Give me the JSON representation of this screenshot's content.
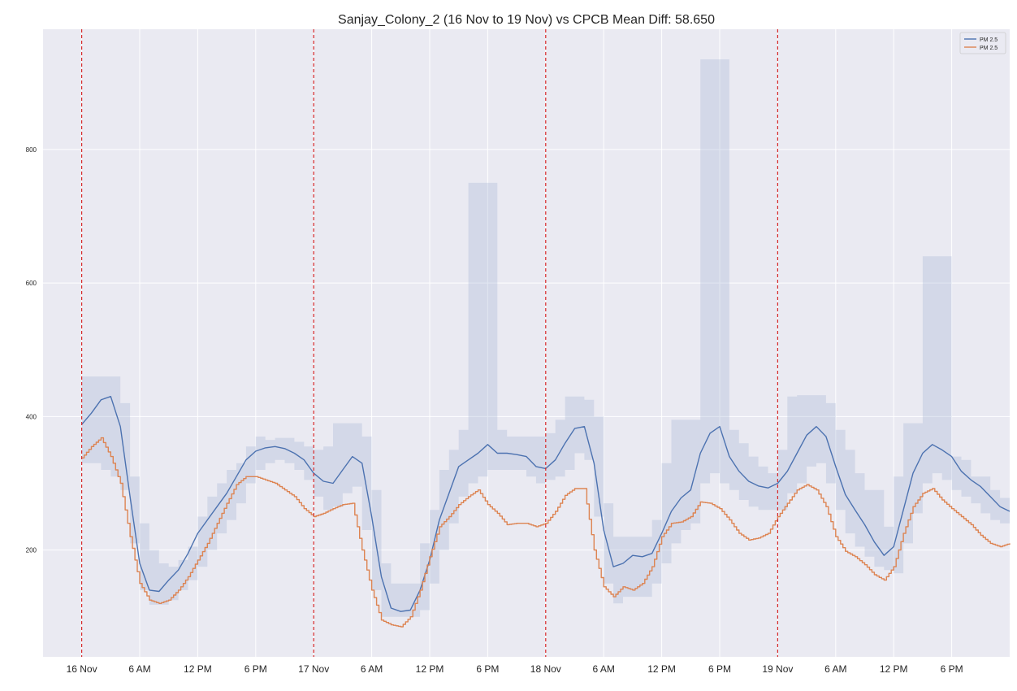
{
  "chart_data": {
    "type": "line",
    "title": "Sanjay_Colony_2 (16 Nov to 19 Nov) vs CPCB Mean Diff: 58.650",
    "xlabel": "",
    "ylabel": "",
    "x_unit": "hours since 16 Nov 00:00",
    "xlim": [
      -4,
      96
    ],
    "ylim": [
      40,
      980
    ],
    "y_ticks": [
      200,
      400,
      600,
      800
    ],
    "x_ticks": [
      {
        "hour": 0,
        "label": "16 Nov"
      },
      {
        "hour": 6,
        "label": "6 AM"
      },
      {
        "hour": 12,
        "label": "12 PM"
      },
      {
        "hour": 18,
        "label": "6 PM"
      },
      {
        "hour": 24,
        "label": "17 Nov"
      },
      {
        "hour": 30,
        "label": "6 AM"
      },
      {
        "hour": 36,
        "label": "12 PM"
      },
      {
        "hour": 42,
        "label": "6 PM"
      },
      {
        "hour": 48,
        "label": "18 Nov"
      },
      {
        "hour": 54,
        "label": "6 AM"
      },
      {
        "hour": 60,
        "label": "12 PM"
      },
      {
        "hour": 66,
        "label": "6 PM"
      },
      {
        "hour": 72,
        "label": "19 Nov"
      },
      {
        "hour": 78,
        "label": "6 AM"
      },
      {
        "hour": 84,
        "label": "12 PM"
      },
      {
        "hour": 90,
        "label": "6 PM"
      }
    ],
    "day_boundaries": [
      0,
      24,
      48,
      72
    ],
    "grid": true,
    "legend": "top-right",
    "background": "#eaeaf2",
    "series": [
      {
        "name": "PM 2.5",
        "color": "#4c72b0",
        "step": false,
        "points": [
          [
            0,
            388
          ],
          [
            1,
            405
          ],
          [
            2,
            425
          ],
          [
            3,
            430
          ],
          [
            4,
            385
          ],
          [
            5,
            280
          ],
          [
            6,
            180
          ],
          [
            7,
            140
          ],
          [
            8,
            138
          ],
          [
            9,
            155
          ],
          [
            10,
            170
          ],
          [
            11,
            195
          ],
          [
            12,
            225
          ],
          [
            13,
            245
          ],
          [
            14,
            265
          ],
          [
            15,
            285
          ],
          [
            16,
            310
          ],
          [
            17,
            335
          ],
          [
            18,
            348
          ],
          [
            19,
            353
          ],
          [
            20,
            355
          ],
          [
            21,
            352
          ],
          [
            22,
            345
          ],
          [
            23,
            335
          ],
          [
            24,
            315
          ],
          [
            25,
            303
          ],
          [
            26,
            300
          ],
          [
            27,
            320
          ],
          [
            28,
            340
          ],
          [
            29,
            330
          ],
          [
            30,
            250
          ],
          [
            31,
            160
          ],
          [
            32,
            113
          ],
          [
            33,
            108
          ],
          [
            34,
            110
          ],
          [
            35,
            140
          ],
          [
            36,
            185
          ],
          [
            37,
            245
          ],
          [
            38,
            285
          ],
          [
            39,
            325
          ],
          [
            40,
            335
          ],
          [
            41,
            345
          ],
          [
            42,
            358
          ],
          [
            43,
            345
          ],
          [
            44,
            345
          ],
          [
            45,
            343
          ],
          [
            46,
            340
          ],
          [
            47,
            325
          ],
          [
            48,
            322
          ],
          [
            49,
            335
          ],
          [
            50,
            360
          ],
          [
            51,
            382
          ],
          [
            52,
            385
          ],
          [
            53,
            330
          ],
          [
            54,
            230
          ],
          [
            55,
            175
          ],
          [
            56,
            180
          ],
          [
            57,
            192
          ],
          [
            58,
            190
          ],
          [
            59,
            195
          ],
          [
            60,
            225
          ],
          [
            61,
            258
          ],
          [
            62,
            278
          ],
          [
            63,
            290
          ],
          [
            64,
            345
          ],
          [
            65,
            375
          ],
          [
            66,
            385
          ],
          [
            67,
            340
          ],
          [
            68,
            318
          ],
          [
            69,
            303
          ],
          [
            70,
            296
          ],
          [
            71,
            293
          ],
          [
            72,
            300
          ],
          [
            73,
            318
          ],
          [
            74,
            345
          ],
          [
            75,
            372
          ],
          [
            76,
            385
          ],
          [
            77,
            370
          ],
          [
            78,
            325
          ],
          [
            79,
            283
          ],
          [
            80,
            260
          ],
          [
            81,
            238
          ],
          [
            82,
            212
          ],
          [
            83,
            192
          ],
          [
            84,
            205
          ],
          [
            85,
            260
          ],
          [
            86,
            315
          ],
          [
            87,
            345
          ],
          [
            88,
            358
          ],
          [
            89,
            350
          ],
          [
            90,
            340
          ],
          [
            91,
            318
          ],
          [
            92,
            305
          ],
          [
            93,
            295
          ],
          [
            94,
            280
          ],
          [
            95,
            265
          ],
          [
            96,
            258
          ]
        ]
      },
      {
        "name": "PM 2.5",
        "color": "#dd8452",
        "step": true,
        "points": [
          [
            0,
            338
          ],
          [
            1,
            355
          ],
          [
            2,
            368
          ],
          [
            3,
            340
          ],
          [
            4,
            300
          ],
          [
            5,
            220
          ],
          [
            6,
            150
          ],
          [
            7,
            125
          ],
          [
            8,
            120
          ],
          [
            9,
            125
          ],
          [
            10,
            140
          ],
          [
            11,
            160
          ],
          [
            12,
            185
          ],
          [
            13,
            210
          ],
          [
            14,
            240
          ],
          [
            15,
            270
          ],
          [
            16,
            298
          ],
          [
            17,
            310
          ],
          [
            18,
            310
          ],
          [
            19,
            305
          ],
          [
            20,
            300
          ],
          [
            21,
            290
          ],
          [
            22,
            280
          ],
          [
            23,
            262
          ],
          [
            24,
            250
          ],
          [
            25,
            255
          ],
          [
            26,
            262
          ],
          [
            27,
            268
          ],
          [
            28,
            270
          ],
          [
            29,
            200
          ],
          [
            30,
            140
          ],
          [
            31,
            95
          ],
          [
            32,
            88
          ],
          [
            33,
            85
          ],
          [
            34,
            100
          ],
          [
            35,
            140
          ],
          [
            36,
            190
          ],
          [
            37,
            235
          ],
          [
            38,
            250
          ],
          [
            39,
            268
          ],
          [
            40,
            280
          ],
          [
            41,
            290
          ],
          [
            42,
            268
          ],
          [
            43,
            255
          ],
          [
            44,
            238
          ],
          [
            45,
            240
          ],
          [
            46,
            240
          ],
          [
            47,
            235
          ],
          [
            48,
            240
          ],
          [
            49,
            258
          ],
          [
            50,
            282
          ],
          [
            51,
            292
          ],
          [
            52,
            292
          ],
          [
            53,
            200
          ],
          [
            54,
            145
          ],
          [
            55,
            130
          ],
          [
            56,
            145
          ],
          [
            57,
            140
          ],
          [
            58,
            150
          ],
          [
            59,
            175
          ],
          [
            60,
            220
          ],
          [
            61,
            240
          ],
          [
            62,
            242
          ],
          [
            63,
            250
          ],
          [
            64,
            272
          ],
          [
            65,
            270
          ],
          [
            66,
            262
          ],
          [
            67,
            245
          ],
          [
            68,
            225
          ],
          [
            69,
            215
          ],
          [
            70,
            218
          ],
          [
            71,
            225
          ],
          [
            72,
            250
          ],
          [
            73,
            270
          ],
          [
            74,
            290
          ],
          [
            75,
            298
          ],
          [
            76,
            290
          ],
          [
            77,
            265
          ],
          [
            78,
            220
          ],
          [
            79,
            198
          ],
          [
            80,
            190
          ],
          [
            81,
            178
          ],
          [
            82,
            163
          ],
          [
            83,
            155
          ],
          [
            84,
            175
          ],
          [
            85,
            225
          ],
          [
            86,
            265
          ],
          [
            87,
            285
          ],
          [
            88,
            292
          ],
          [
            89,
            275
          ],
          [
            90,
            262
          ],
          [
            91,
            250
          ],
          [
            92,
            238
          ],
          [
            93,
            222
          ],
          [
            94,
            210
          ],
          [
            95,
            205
          ],
          [
            96,
            210
          ]
        ]
      }
    ],
    "band": {
      "series": 0,
      "color": "#a8b8d8",
      "step": true,
      "segments": [
        [
          0,
          330,
          460
        ],
        [
          1,
          330,
          460
        ],
        [
          2,
          320,
          460
        ],
        [
          3,
          310,
          460
        ],
        [
          4,
          290,
          420
        ],
        [
          5,
          210,
          310
        ],
        [
          6,
          140,
          240
        ],
        [
          7,
          118,
          200
        ],
        [
          8,
          118,
          180
        ],
        [
          9,
          125,
          175
        ],
        [
          10,
          140,
          185
        ],
        [
          11,
          155,
          205
        ],
        [
          12,
          175,
          250
        ],
        [
          13,
          200,
          280
        ],
        [
          14,
          225,
          300
        ],
        [
          15,
          245,
          320
        ],
        [
          16,
          270,
          330
        ],
        [
          17,
          300,
          355
        ],
        [
          18,
          320,
          370
        ],
        [
          19,
          330,
          365
        ],
        [
          20,
          335,
          368
        ],
        [
          21,
          330,
          368
        ],
        [
          22,
          320,
          362
        ],
        [
          23,
          305,
          355
        ],
        [
          24,
          280,
          350
        ],
        [
          25,
          260,
          355
        ],
        [
          26,
          265,
          390
        ],
        [
          27,
          285,
          390
        ],
        [
          28,
          295,
          390
        ],
        [
          29,
          230,
          370
        ],
        [
          30,
          140,
          290
        ],
        [
          31,
          100,
          180
        ],
        [
          32,
          100,
          150
        ],
        [
          33,
          100,
          150
        ],
        [
          34,
          100,
          150
        ],
        [
          35,
          110,
          210
        ],
        [
          36,
          150,
          260
        ],
        [
          37,
          200,
          320
        ],
        [
          38,
          240,
          350
        ],
        [
          39,
          280,
          380
        ],
        [
          40,
          300,
          750
        ],
        [
          41,
          310,
          750
        ],
        [
          42,
          320,
          750
        ],
        [
          43,
          320,
          380
        ],
        [
          44,
          320,
          370
        ],
        [
          45,
          320,
          370
        ],
        [
          46,
          310,
          370
        ],
        [
          47,
          300,
          370
        ],
        [
          48,
          305,
          375
        ],
        [
          49,
          310,
          395
        ],
        [
          50,
          320,
          430
        ],
        [
          51,
          345,
          430
        ],
        [
          52,
          335,
          425
        ],
        [
          53,
          250,
          400
        ],
        [
          54,
          150,
          270
        ],
        [
          55,
          120,
          220
        ],
        [
          56,
          130,
          220
        ],
        [
          57,
          130,
          220
        ],
        [
          58,
          130,
          220
        ],
        [
          59,
          150,
          245
        ],
        [
          60,
          180,
          330
        ],
        [
          61,
          210,
          395
        ],
        [
          62,
          230,
          395
        ],
        [
          63,
          240,
          395
        ],
        [
          64,
          300,
          935
        ],
        [
          65,
          315,
          935
        ],
        [
          66,
          300,
          935
        ],
        [
          67,
          290,
          380
        ],
        [
          68,
          275,
          360
        ],
        [
          69,
          265,
          340
        ],
        [
          70,
          260,
          325
        ],
        [
          71,
          260,
          315
        ],
        [
          72,
          260,
          350
        ],
        [
          73,
          285,
          430
        ],
        [
          74,
          300,
          432
        ],
        [
          75,
          325,
          432
        ],
        [
          76,
          330,
          432
        ],
        [
          77,
          300,
          420
        ],
        [
          78,
          260,
          380
        ],
        [
          79,
          225,
          350
        ],
        [
          80,
          205,
          315
        ],
        [
          81,
          190,
          290
        ],
        [
          82,
          175,
          290
        ],
        [
          83,
          170,
          235
        ],
        [
          84,
          165,
          310
        ],
        [
          85,
          210,
          390
        ],
        [
          86,
          255,
          390
        ],
        [
          87,
          300,
          640
        ],
        [
          88,
          315,
          640
        ],
        [
          89,
          305,
          640
        ],
        [
          90,
          290,
          340
        ],
        [
          91,
          280,
          335
        ],
        [
          92,
          270,
          310
        ],
        [
          93,
          255,
          310
        ],
        [
          94,
          245,
          290
        ],
        [
          95,
          240,
          278
        ]
      ]
    }
  }
}
